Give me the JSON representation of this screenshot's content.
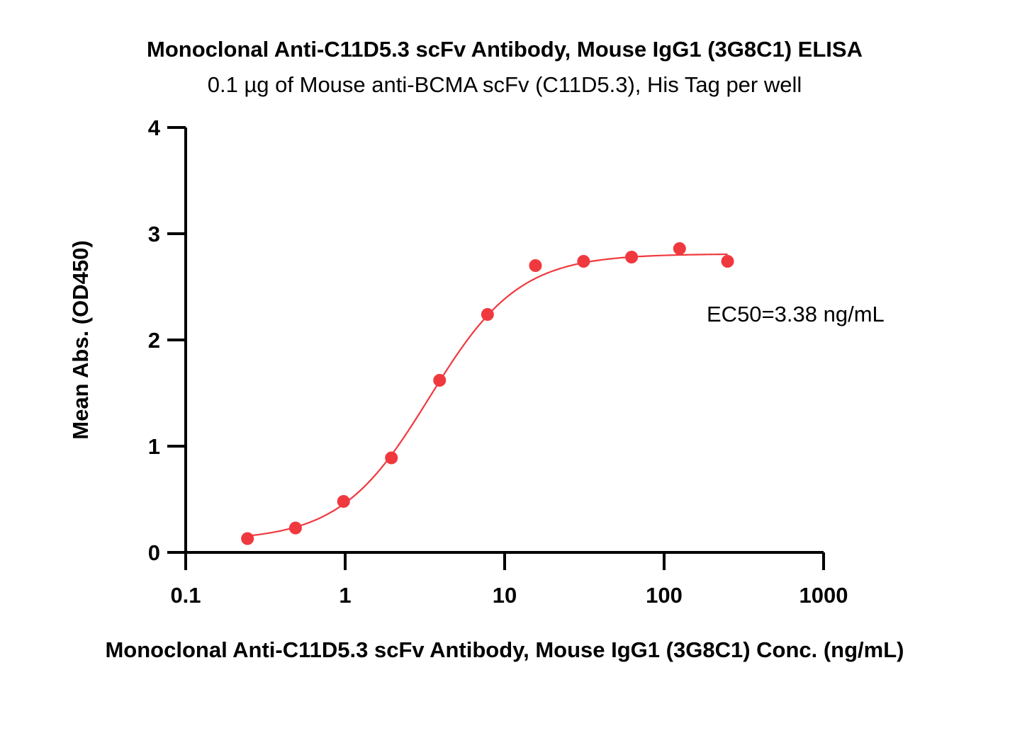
{
  "chart_data": {
    "type": "scatter",
    "title": "Monoclonal Anti-C11D5.3 scFv Antibody, Mouse IgG1 (3G8C1) ELISA",
    "subtitle": "0.1 µg of Mouse anti-BCMA scFv (C11D5.3), His Tag per well",
    "xlabel": "Monoclonal Anti-C11D5.3 scFv Antibody, Mouse IgG1 (3G8C1) Conc. (ng/mL)",
    "ylabel": "Mean Abs. (OD450)",
    "xscale": "log",
    "xlim": [
      0.1,
      1000
    ],
    "ylim": [
      0,
      4
    ],
    "x_ticks": [
      0.1,
      1,
      10,
      100,
      1000
    ],
    "x_tick_labels": [
      "0.1",
      "1",
      "10",
      "100",
      "1000"
    ],
    "y_ticks": [
      0,
      1,
      2,
      3,
      4
    ],
    "y_tick_labels": [
      "0",
      "1",
      "2",
      "3",
      "4"
    ],
    "grid": false,
    "series": [
      {
        "color": "#f0393e",
        "x": [
          0.244,
          0.488,
          0.977,
          1.95,
          3.91,
          7.81,
          15.6,
          31.25,
          62.5,
          125,
          250
        ],
        "y": [
          0.13,
          0.23,
          0.48,
          0.89,
          1.62,
          2.24,
          2.7,
          2.74,
          2.78,
          2.86,
          2.74
        ]
      }
    ],
    "fit": {
      "model": "4PL",
      "bottom": 0.11,
      "top": 2.81,
      "ec50": 3.38,
      "hill": 1.55,
      "x_range": [
        0.244,
        250
      ],
      "color": "#f0393e"
    },
    "annotation": "EC50=3.38 ng/mL"
  }
}
